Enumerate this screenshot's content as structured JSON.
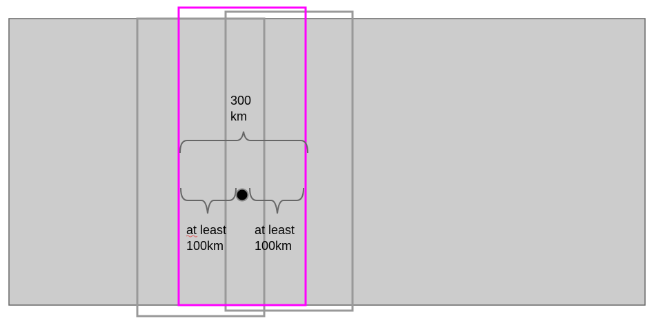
{
  "colors": {
    "background_band": "#cccccc",
    "band_border": "#666666",
    "window_gray": "#999999",
    "window_highlight": "#ff00ff",
    "brace": "#666666",
    "center_dot": "#000000",
    "text": "#000000"
  },
  "labels": {
    "total_width_value": "300",
    "total_width_unit": "km",
    "left_margin_line1": "at least",
    "left_margin_line2": "100km",
    "right_margin_line1": "at least",
    "right_margin_line2": "100km"
  }
}
